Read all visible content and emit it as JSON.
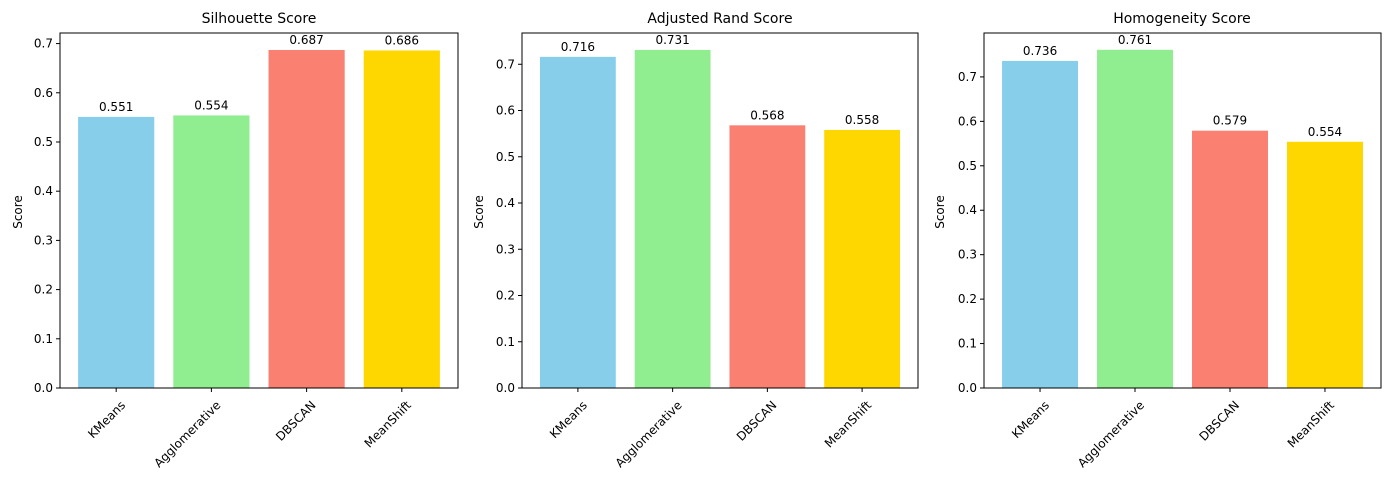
{
  "charts": [
    {
      "title": "Silhouette Score",
      "ylabel": "Score",
      "yticks": [
        "0.0",
        "0.1",
        "0.2",
        "0.3",
        "0.4",
        "0.5",
        "0.6",
        "0.7"
      ]
    },
    {
      "title": "Adjusted Rand Score",
      "ylabel": "Score",
      "yticks": [
        "0.0",
        "0.1",
        "0.2",
        "0.3",
        "0.4",
        "0.5",
        "0.6",
        "0.7"
      ]
    },
    {
      "title": "Homogeneity Score",
      "ylabel": "Score",
      "yticks": [
        "0.0",
        "0.1",
        "0.2",
        "0.3",
        "0.4",
        "0.5",
        "0.6",
        "0.7"
      ]
    }
  ],
  "chart_data": [
    {
      "type": "bar",
      "title": "Silhouette Score",
      "xlabel": "",
      "ylabel": "Score",
      "categories": [
        "KMeans",
        "Agglomerative",
        "DBSCAN",
        "MeanShift"
      ],
      "values": [
        0.551,
        0.554,
        0.687,
        0.686
      ],
      "labels": [
        "0.551",
        "0.554",
        "0.687",
        "0.686"
      ],
      "colors": [
        "#87ceeb",
        "#90ee90",
        "#fa8072",
        "#ffd700"
      ],
      "ylim": [
        0,
        0.7215
      ],
      "grid": false
    },
    {
      "type": "bar",
      "title": "Adjusted Rand Score",
      "xlabel": "",
      "ylabel": "Score",
      "categories": [
        "KMeans",
        "Agglomerative",
        "DBSCAN",
        "MeanShift"
      ],
      "values": [
        0.716,
        0.731,
        0.568,
        0.558
      ],
      "labels": [
        "0.716",
        "0.731",
        "0.568",
        "0.558"
      ],
      "colors": [
        "#87ceeb",
        "#90ee90",
        "#fa8072",
        "#ffd700"
      ],
      "ylim": [
        0,
        0.7676
      ],
      "grid": false
    },
    {
      "type": "bar",
      "title": "Homogeneity Score",
      "xlabel": "",
      "ylabel": "Score",
      "categories": [
        "KMeans",
        "Agglomerative",
        "DBSCAN",
        "MeanShift"
      ],
      "values": [
        0.736,
        0.761,
        0.579,
        0.554
      ],
      "labels": [
        "0.736",
        "0.761",
        "0.579",
        "0.554"
      ],
      "colors": [
        "#87ceeb",
        "#90ee90",
        "#fa8072",
        "#ffd700"
      ],
      "ylim": [
        0,
        0.7988
      ],
      "grid": false
    }
  ]
}
